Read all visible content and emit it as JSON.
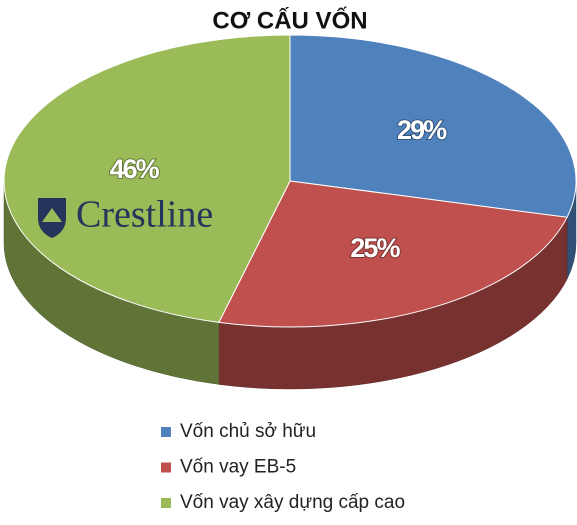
{
  "chart_data": {
    "type": "pie3d",
    "title": "CƠ CẤU VỐN",
    "categories": [
      "Vốn chủ sở hữu",
      "Vốn vay EB-5",
      "Vốn vay xây dựng cấp cao"
    ],
    "values": [
      29,
      25,
      46
    ],
    "value_labels": [
      "29%",
      "25%",
      "46%"
    ],
    "colors": [
      "#4f81bd",
      "#c0504d",
      "#9bbb59"
    ],
    "legend": "bottom"
  },
  "watermark": "Crestline"
}
